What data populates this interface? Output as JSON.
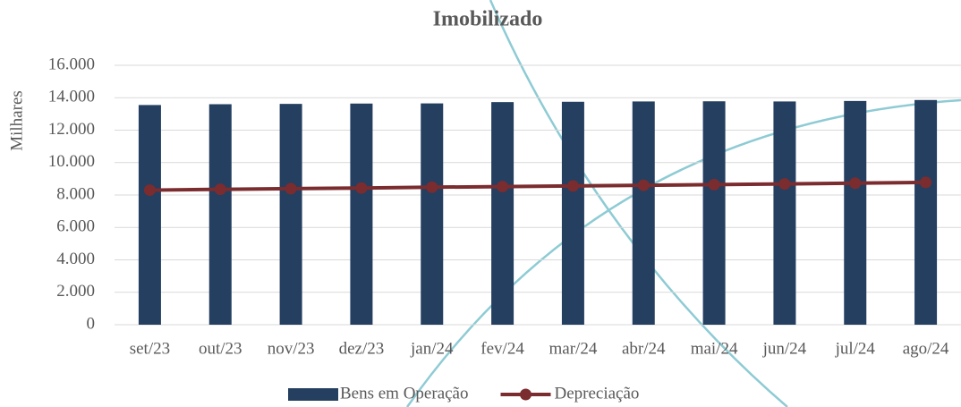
{
  "chart_data": {
    "type": "bar",
    "title": "Imobilizado",
    "y_label": "Milhares",
    "categories": [
      "set/23",
      "out/23",
      "nov/23",
      "dez/23",
      "jan/24",
      "fev/24",
      "mar/24",
      "abr/24",
      "mai/24",
      "jun/24",
      "jul/24",
      "ago/24"
    ],
    "series": [
      {
        "name": "Bens em Operação",
        "type": "bar",
        "color": "#243f60",
        "values": [
          13550,
          13600,
          13620,
          13640,
          13650,
          13730,
          13750,
          13770,
          13780,
          13770,
          13800,
          13860
        ]
      },
      {
        "name": "Depreciação",
        "type": "line",
        "color": "#7b2c2f",
        "values": [
          8300,
          8350,
          8390,
          8430,
          8480,
          8520,
          8560,
          8600,
          8640,
          8680,
          8730,
          8780
        ]
      }
    ],
    "ylim": [
      0,
      16000
    ],
    "yticks": [
      0,
      {
        "value": 2000,
        "label": "2.000"
      },
      {
        "value": 4000,
        "label": "4.000"
      },
      {
        "value": 6000,
        "label": "6.000"
      },
      {
        "value": 8000,
        "label": "8.000"
      },
      {
        "value": 10000,
        "label": "10.000"
      },
      {
        "value": 12000,
        "label": "12.000"
      },
      {
        "value": 14000,
        "label": "14.000"
      },
      {
        "value": 16000,
        "label": "16.000"
      }
    ],
    "grid": true,
    "legend": "bottom"
  }
}
